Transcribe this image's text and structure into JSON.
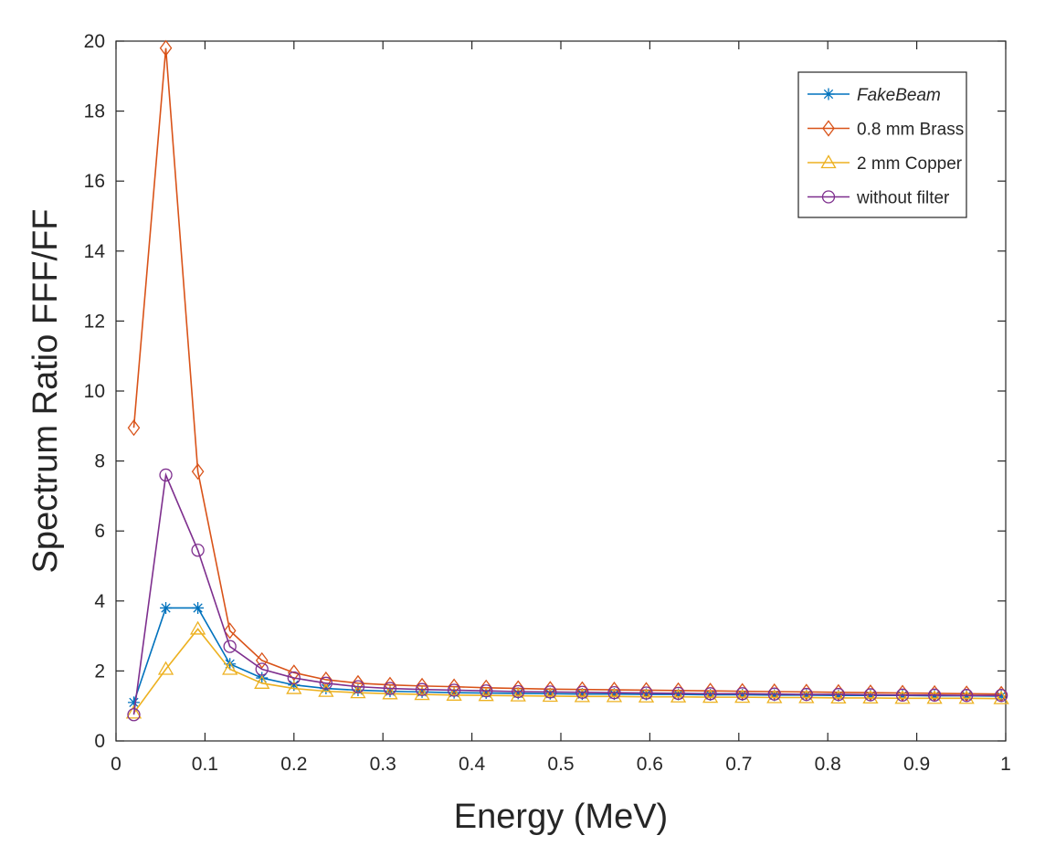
{
  "chart_data": {
    "type": "line",
    "title": "",
    "xlabel": "Energy (MeV)",
    "ylabel": "Spectrum Ratio FFF/FF",
    "xlim": [
      0,
      1
    ],
    "ylim": [
      0,
      20
    ],
    "xticks": [
      0,
      0.1,
      0.2,
      0.3,
      0.4,
      0.5,
      0.6,
      0.7,
      0.8,
      0.9,
      1
    ],
    "xtick_labels": [
      "0",
      "0.1",
      "0.2",
      "0.3",
      "0.4",
      "0.5",
      "0.6",
      "0.7",
      "0.8",
      "0.9",
      "1"
    ],
    "yticks": [
      0,
      2,
      4,
      6,
      8,
      10,
      12,
      14,
      16,
      18,
      20
    ],
    "ytick_labels": [
      "0",
      "2",
      "4",
      "6",
      "8",
      "10",
      "12",
      "14",
      "16",
      "18",
      "20"
    ],
    "grid": false,
    "legend_position": "top-right",
    "x": [
      0.02,
      0.056,
      0.092,
      0.128,
      0.164,
      0.2,
      0.236,
      0.272,
      0.308,
      0.344,
      0.38,
      0.416,
      0.452,
      0.488,
      0.524,
      0.56,
      0.596,
      0.632,
      0.668,
      0.704,
      0.74,
      0.776,
      0.812,
      0.848,
      0.884,
      0.92,
      0.956,
      0.995
    ],
    "series": [
      {
        "name": "FakeBeam",
        "color": "#0072BD",
        "marker": "star",
        "values": [
          1.1,
          3.8,
          3.8,
          2.2,
          1.8,
          1.6,
          1.5,
          1.45,
          1.42,
          1.4,
          1.38,
          1.37,
          1.36,
          1.35,
          1.34,
          1.34,
          1.33,
          1.33,
          1.32,
          1.32,
          1.31,
          1.31,
          1.3,
          1.3,
          1.3,
          1.29,
          1.29,
          1.28
        ]
      },
      {
        "name": "0.8 mm Brass",
        "color": "#D95319",
        "marker": "diamond",
        "values": [
          8.95,
          19.8,
          7.7,
          3.15,
          2.3,
          1.95,
          1.75,
          1.65,
          1.6,
          1.57,
          1.55,
          1.52,
          1.5,
          1.48,
          1.47,
          1.46,
          1.45,
          1.44,
          1.43,
          1.42,
          1.41,
          1.4,
          1.39,
          1.38,
          1.37,
          1.36,
          1.35,
          1.34
        ]
      },
      {
        "name": "2 mm Copper",
        "color": "#EDB120",
        "marker": "triangle",
        "values": [
          0.8,
          2.05,
          3.2,
          2.05,
          1.65,
          1.5,
          1.42,
          1.38,
          1.35,
          1.33,
          1.31,
          1.3,
          1.29,
          1.28,
          1.27,
          1.27,
          1.26,
          1.26,
          1.25,
          1.25,
          1.24,
          1.24,
          1.23,
          1.23,
          1.22,
          1.22,
          1.22,
          1.21
        ]
      },
      {
        "name": "without filter",
        "color": "#7E2F8E",
        "marker": "circle",
        "values": [
          0.75,
          7.6,
          5.45,
          2.7,
          2.05,
          1.8,
          1.65,
          1.55,
          1.5,
          1.47,
          1.45,
          1.43,
          1.41,
          1.4,
          1.39,
          1.38,
          1.37,
          1.36,
          1.35,
          1.35,
          1.34,
          1.33,
          1.33,
          1.32,
          1.31,
          1.31,
          1.3,
          1.3
        ]
      }
    ]
  }
}
